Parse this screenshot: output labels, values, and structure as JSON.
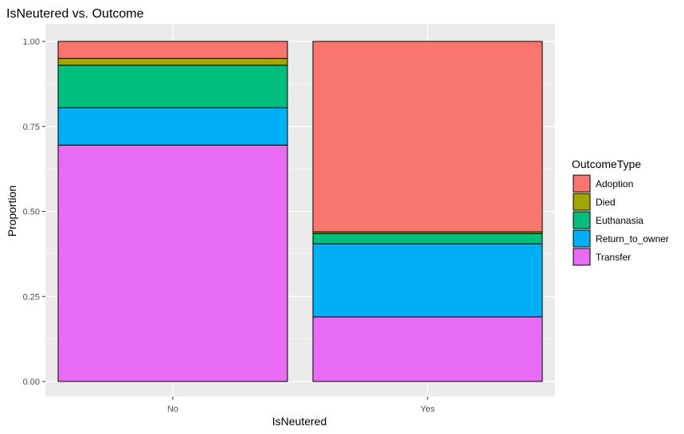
{
  "chart_data": {
    "type": "bar",
    "stacked": true,
    "title": "IsNeutered vs. Outcome",
    "xlabel": "IsNeutered",
    "ylabel": "Proportion",
    "ylim": [
      0,
      1
    ],
    "yticks": [
      "0.00",
      "0.25",
      "0.50",
      "0.75",
      "1.00"
    ],
    "categories": [
      "No",
      "Yes"
    ],
    "legend_title": "OutcomeType",
    "legend_position": "right",
    "grid": true,
    "series": [
      {
        "name": "Adoption",
        "color": "#F8766D",
        "values": [
          0.05,
          0.56
        ]
      },
      {
        "name": "Died",
        "color": "#A3A500",
        "values": [
          0.02,
          0.005
        ]
      },
      {
        "name": "Euthanasia",
        "color": "#00BF7D",
        "values": [
          0.125,
          0.03
        ]
      },
      {
        "name": "Return_to_owner",
        "color": "#00B0F6",
        "values": [
          0.11,
          0.215
        ]
      },
      {
        "name": "Transfer",
        "color": "#E76BF3",
        "values": [
          0.695,
          0.19
        ]
      }
    ]
  }
}
